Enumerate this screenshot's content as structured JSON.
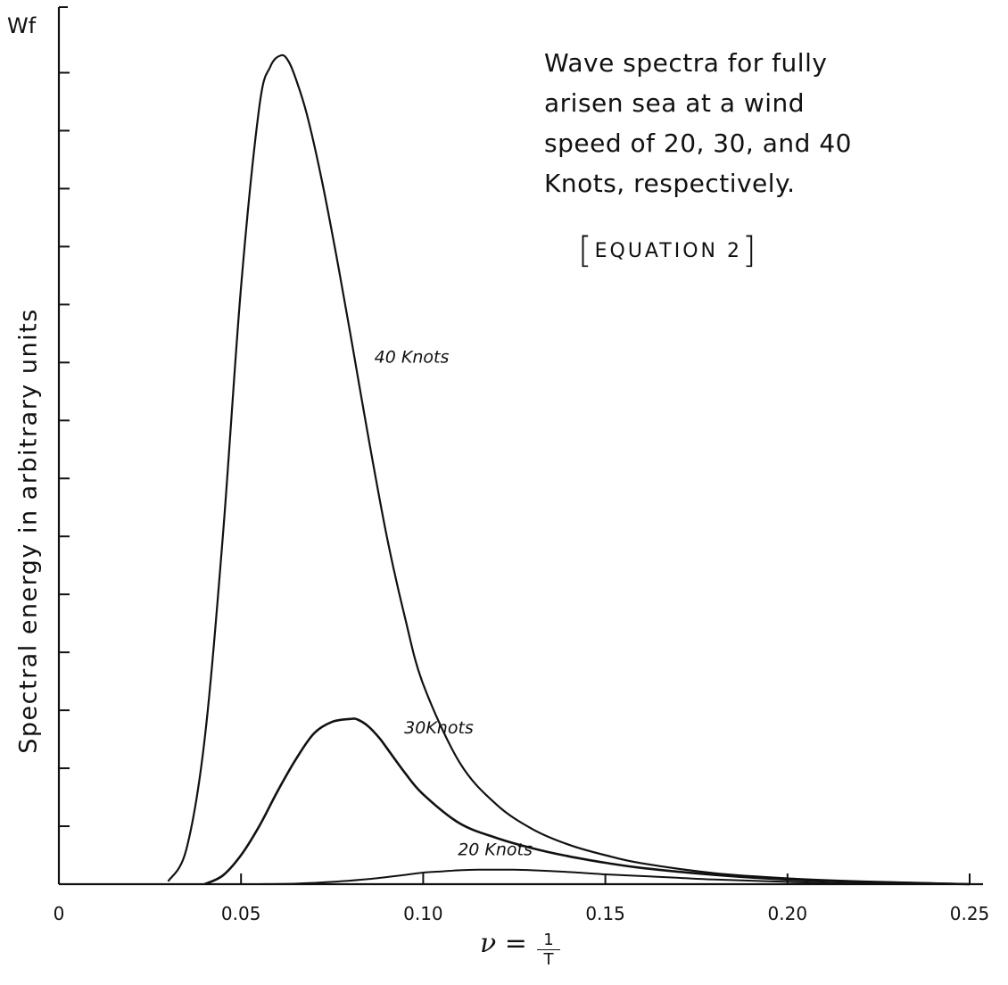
{
  "chart_data": {
    "type": "line",
    "title": "Wave spectra for fully arisen sea at a wind speed of 20, 30, and 40 Knots, respectively.",
    "title_lines": [
      "Wave  spectra  for  fully",
      "arisen  sea  at  a  wind",
      "speed  of  20, 30,  and 40",
      "Knots, respectively."
    ],
    "annotation": "EQUATION  2",
    "ylabel": "Spectral energy in arbitrary units",
    "y_symbol": "Wf",
    "xlabel_symbol": "ν",
    "xlabel_numerator": "1",
    "xlabel_denominator": "T",
    "xlim": [
      0,
      0.25
    ],
    "ylim": [
      0,
      14.3
    ],
    "x_ticks": [
      0,
      0.05,
      0.1,
      0.15,
      0.2,
      0.25
    ],
    "x_tick_labels": [
      "0",
      "0.05",
      "0.10",
      "0.15",
      "0.20",
      "0.25"
    ],
    "y_ticks": [
      1,
      2,
      3,
      4,
      5,
      6,
      7,
      8,
      9,
      10,
      11,
      12,
      13,
      14
    ],
    "grid": false,
    "series": [
      {
        "name": "40 Knots",
        "label_at": [
          0.0866,
          9.0
        ],
        "x": [
          0.03,
          0.035,
          0.04,
          0.045,
          0.05,
          0.055,
          0.058,
          0.061,
          0.063,
          0.065,
          0.068,
          0.072,
          0.076,
          0.08,
          0.085,
          0.09,
          0.095,
          0.1,
          0.11,
          0.12,
          0.13,
          0.14,
          0.15,
          0.16,
          0.18,
          0.2,
          0.22,
          0.25
        ],
        "y": [
          0.05,
          0.6,
          2.5,
          6.0,
          10.3,
          13.4,
          14.1,
          14.3,
          14.2,
          13.9,
          13.3,
          12.2,
          10.9,
          9.5,
          7.7,
          6.0,
          4.6,
          3.45,
          2.1,
          1.38,
          0.95,
          0.68,
          0.5,
          0.36,
          0.19,
          0.1,
          0.05,
          0.0
        ]
      },
      {
        "name": "30Knots",
        "label_at": [
          0.0948,
          2.6
        ],
        "x": [
          0.04,
          0.045,
          0.05,
          0.055,
          0.06,
          0.065,
          0.07,
          0.075,
          0.08,
          0.082,
          0.085,
          0.088,
          0.09,
          0.095,
          0.1,
          0.11,
          0.12,
          0.13,
          0.14,
          0.15,
          0.16,
          0.18,
          0.2,
          0.22,
          0.25
        ],
        "y": [
          0.0,
          0.15,
          0.5,
          1.0,
          1.6,
          2.15,
          2.6,
          2.8,
          2.85,
          2.84,
          2.72,
          2.52,
          2.35,
          1.92,
          1.55,
          1.05,
          0.8,
          0.62,
          0.48,
          0.37,
          0.28,
          0.16,
          0.08,
          0.04,
          0.0
        ]
      },
      {
        "name": "20 Knots",
        "label_at": [
          0.1095,
          0.5
        ],
        "x": [
          0.055,
          0.065,
          0.075,
          0.085,
          0.095,
          0.1,
          0.105,
          0.11,
          0.115,
          0.12,
          0.125,
          0.13,
          0.14,
          0.15,
          0.16,
          0.17,
          0.18,
          0.2,
          0.22,
          0.25
        ],
        "y": [
          0.0,
          0.01,
          0.04,
          0.09,
          0.16,
          0.2,
          0.22,
          0.24,
          0.25,
          0.25,
          0.25,
          0.24,
          0.21,
          0.17,
          0.14,
          0.11,
          0.08,
          0.04,
          0.01,
          0.0
        ]
      }
    ]
  }
}
